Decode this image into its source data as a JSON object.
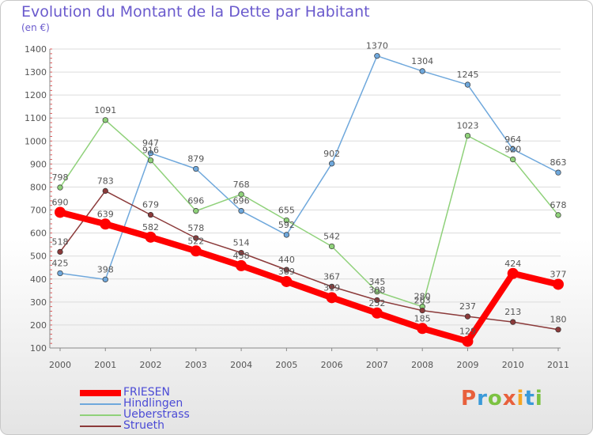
{
  "title": "Evolution du Montant de la Dette par Habitant",
  "unit_note": "(en €)",
  "logo": {
    "text": "Proxiti",
    "colors": [
      "#e8603c",
      "#3a9ad9",
      "#7cc242",
      "#e8603c",
      "#f5a623",
      "#3a9ad9",
      "#7cc242"
    ]
  },
  "chart_data": {
    "type": "line",
    "x": [
      "2000",
      "2001",
      "2002",
      "2003",
      "2004",
      "2005",
      "2006",
      "2007",
      "2008",
      "2009",
      "2010",
      "2011"
    ],
    "ylim": [
      100,
      1400
    ],
    "yticks": [
      100,
      200,
      300,
      400,
      500,
      600,
      700,
      800,
      900,
      1000,
      1100,
      1200,
      1300,
      1400
    ],
    "grid": "horizontal",
    "legend": "bottom-left",
    "series": [
      {
        "name": "FRIESEN",
        "color": "#ff0000",
        "values": [
          690,
          639,
          582,
          522,
          458,
          389,
          319,
          252,
          185,
          129,
          424,
          377
        ]
      },
      {
        "name": "Hindlingen",
        "color": "#6fa8dc",
        "values": [
          425,
          398,
          947,
          879,
          696,
          592,
          902,
          1370,
          1304,
          1245,
          964,
          863
        ]
      },
      {
        "name": "Ueberstrass",
        "color": "#8fd17a",
        "values": [
          798,
          1091,
          916,
          696,
          768,
          655,
          542,
          345,
          280,
          1023,
          920,
          678
        ]
      },
      {
        "name": "Strueth",
        "color": "#8b3a3a",
        "values": [
          518,
          783,
          679,
          578,
          514,
          440,
          367,
          308,
          263,
          237,
          213,
          180
        ]
      }
    ]
  }
}
